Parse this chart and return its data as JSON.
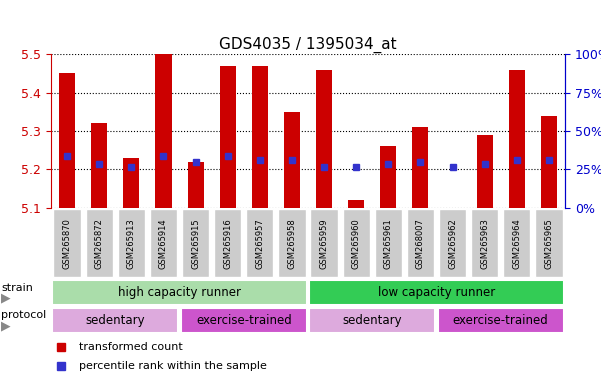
{
  "title": "GDS4035 / 1395034_at",
  "samples": [
    "GSM265870",
    "GSM265872",
    "GSM265913",
    "GSM265914",
    "GSM265915",
    "GSM265916",
    "GSM265957",
    "GSM265958",
    "GSM265959",
    "GSM265960",
    "GSM265961",
    "GSM268007",
    "GSM265962",
    "GSM265963",
    "GSM265964",
    "GSM265965"
  ],
  "transformed_count": [
    5.45,
    5.32,
    5.23,
    5.5,
    5.22,
    5.47,
    5.47,
    5.35,
    5.46,
    5.12,
    5.26,
    5.31,
    5.1,
    5.29,
    5.46,
    5.34
  ],
  "percentile_rank": [
    5.235,
    5.215,
    5.205,
    5.235,
    5.22,
    5.235,
    5.225,
    5.225,
    5.205,
    5.205,
    5.215,
    5.22,
    5.205,
    5.215,
    5.225,
    5.225
  ],
  "ylim": [
    5.1,
    5.5
  ],
  "y_ticks": [
    5.1,
    5.2,
    5.3,
    5.4,
    5.5
  ],
  "y2_ticks": [
    0,
    25,
    50,
    75,
    100
  ],
  "bar_color": "#cc0000",
  "dot_color": "#3333cc",
  "base": 5.1,
  "strain_groups": [
    {
      "label": "high capacity runner",
      "start": 0,
      "end": 8,
      "color": "#aaddaa"
    },
    {
      "label": "low capacity runner",
      "start": 8,
      "end": 16,
      "color": "#33cc55"
    }
  ],
  "protocol_groups": [
    {
      "label": "sedentary",
      "start": 0,
      "end": 4,
      "color": "#ddaadd"
    },
    {
      "label": "exercise-trained",
      "start": 4,
      "end": 8,
      "color": "#cc55cc"
    },
    {
      "label": "sedentary",
      "start": 8,
      "end": 12,
      "color": "#ddaadd"
    },
    {
      "label": "exercise-trained",
      "start": 12,
      "end": 16,
      "color": "#cc55cc"
    }
  ],
  "legend_items": [
    {
      "label": "transformed count",
      "color": "#cc0000"
    },
    {
      "label": "percentile rank within the sample",
      "color": "#3333cc"
    }
  ],
  "strain_label": "strain",
  "protocol_label": "protocol",
  "bg_color": "#ffffff",
  "tick_color_left": "#cc0000",
  "tick_color_right": "#0000cc",
  "xtick_bg": "#cccccc"
}
